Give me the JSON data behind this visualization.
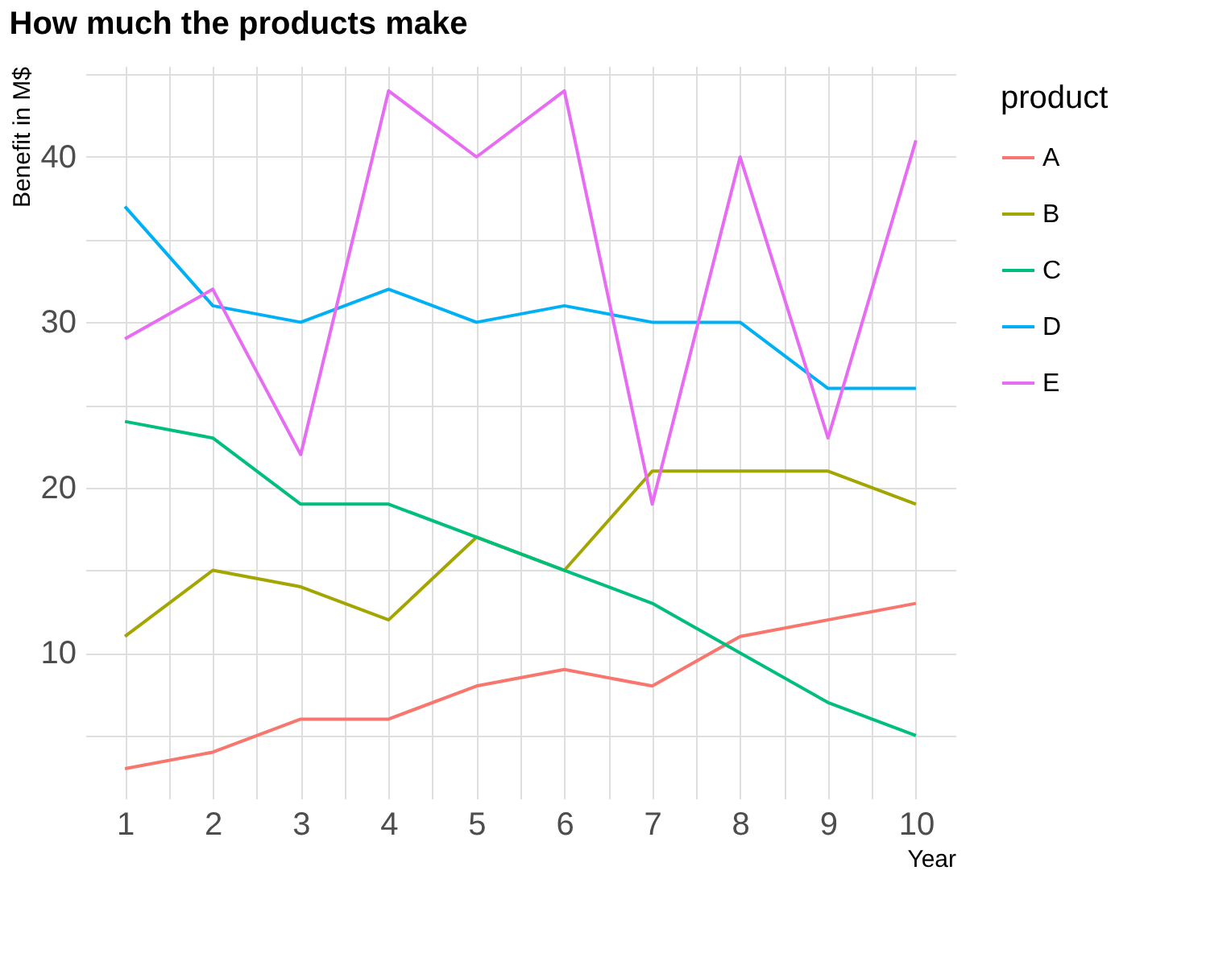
{
  "chart_data": {
    "type": "line",
    "title": "How much the products make",
    "xlabel": "Year",
    "ylabel": "Benefit in M$",
    "legend_title": "product",
    "x": [
      1,
      2,
      3,
      4,
      5,
      6,
      7,
      8,
      9,
      10
    ],
    "series": [
      {
        "name": "A",
        "color": "#f8766d",
        "values": [
          3,
          4,
          6,
          6,
          8,
          9,
          8,
          11,
          12,
          13
        ]
      },
      {
        "name": "B",
        "color": "#a3a500",
        "values": [
          11,
          15,
          14,
          12,
          17,
          15,
          21,
          21,
          21,
          19
        ]
      },
      {
        "name": "C",
        "color": "#00bf7d",
        "values": [
          24,
          23,
          19,
          19,
          17,
          15,
          13,
          10,
          7,
          5
        ]
      },
      {
        "name": "D",
        "color": "#00b0f6",
        "values": [
          37,
          31,
          30,
          32,
          30,
          31,
          30,
          30,
          26,
          26
        ]
      },
      {
        "name": "E",
        "color": "#e76bf3",
        "values": [
          29,
          32,
          22,
          44,
          40,
          44,
          19,
          40,
          23,
          41
        ]
      }
    ],
    "xlim": [
      0.55,
      10.45
    ],
    "ylim": [
      1.2,
      45.5
    ],
    "xticks": [
      1,
      {
        "value": 1.5,
        "label": null
      },
      2,
      {
        "value": 2.5,
        "label": null
      },
      3,
      {
        "value": 3.5,
        "label": null
      },
      4,
      {
        "value": 4.5,
        "label": null
      },
      5,
      {
        "value": 5.5,
        "label": null
      },
      6,
      {
        "value": 6.5,
        "label": null
      },
      7,
      {
        "value": 7.5,
        "label": null
      },
      8,
      {
        "value": 8.5,
        "label": null
      },
      9,
      {
        "value": 9.5,
        "label": null
      },
      10
    ],
    "yticks": [
      {
        "value": 5,
        "label": null
      },
      10,
      {
        "value": 15,
        "label": null
      },
      20,
      {
        "value": 25,
        "label": null
      },
      30,
      {
        "value": 35,
        "label": null
      },
      40,
      {
        "value": 45,
        "label": null
      }
    ],
    "grid": true,
    "legend": "right",
    "marker": "none",
    "line_style": "solid"
  }
}
